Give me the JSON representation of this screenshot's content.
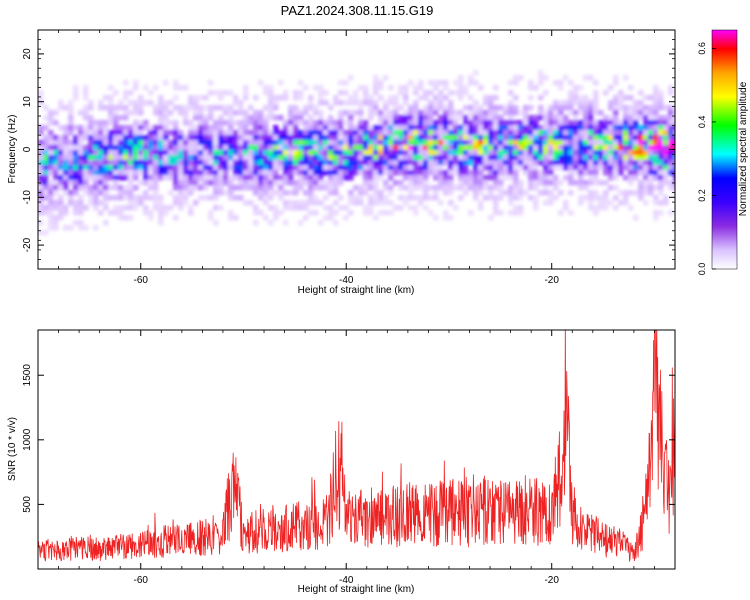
{
  "title": "PAZ1.2024.308.11.15.G19",
  "chart_data": [
    {
      "type": "heatmap",
      "xlabel": "Height of straight line (km)",
      "ylabel": "Frequency (Hz)",
      "xlim": [
        -70,
        -8
      ],
      "ylim": [
        -25,
        25
      ],
      "xticks": [
        -60,
        -40,
        -20
      ],
      "yticks": [
        -20,
        -10,
        0,
        10,
        20
      ],
      "colorbar": {
        "label": "Normalized spectral amplitude",
        "range": [
          0.0,
          0.65
        ],
        "ticks": [
          0.0,
          0.2,
          0.4,
          0.6
        ],
        "colormap": [
          "#ffffff",
          "#c8a6ff",
          "#8a2be2",
          "#3a00ff",
          "#0000ff",
          "#00ffff",
          "#00ff00",
          "#ffff00",
          "#ffa500",
          "#ff0000",
          "#ff00ff"
        ]
      },
      "ridge": {
        "x": [
          -70,
          -65,
          -60,
          -55,
          -50,
          -45,
          -40,
          -35,
          -30,
          -25,
          -20,
          -15,
          -10,
          -8
        ],
        "center_freq": [
          -3,
          -2,
          -1,
          -1,
          -1,
          -0.5,
          -0.5,
          1,
          1,
          0.5,
          1,
          1,
          0.5,
          0
        ],
        "peak_amplitude": [
          0.25,
          0.25,
          0.3,
          0.2,
          0.25,
          0.3,
          0.3,
          0.42,
          0.35,
          0.35,
          0.3,
          0.3,
          0.5,
          0.6
        ]
      }
    },
    {
      "type": "line",
      "xlabel": "Height of straight line (km)",
      "ylabel": "SNR (10 * v/v)",
      "xlim": [
        -70,
        -8
      ],
      "ylim": [
        0,
        1850
      ],
      "xticks": [
        -60,
        -40,
        -20
      ],
      "yticks": [
        500,
        1000,
        1500
      ],
      "color": "#ee2222",
      "series": [
        {
          "x": [
            -70,
            -68,
            -66,
            -64,
            -62,
            -60,
            -58,
            -56,
            -54,
            -52,
            -51,
            -50,
            -48,
            -46,
            -44,
            -42,
            -40.5,
            -40,
            -38,
            -36,
            -34,
            -32,
            -30,
            -28,
            -26,
            -24,
            -22,
            -20,
            -18.5,
            -18,
            -17,
            -16,
            -15,
            -14,
            -13,
            -12,
            -11,
            -10.5,
            -10,
            -9.5,
            -9,
            -8.5,
            -8
          ],
          "y": [
            200,
            180,
            220,
            200,
            230,
            250,
            280,
            300,
            320,
            380,
            900,
            350,
            400,
            420,
            450,
            500,
            1050,
            500,
            520,
            550,
            560,
            560,
            580,
            560,
            620,
            560,
            600,
            560,
            1350,
            500,
            400,
            380,
            300,
            280,
            250,
            150,
            500,
            1050,
            1850,
            1400,
            900,
            800,
            1250
          ]
        }
      ]
    }
  ]
}
